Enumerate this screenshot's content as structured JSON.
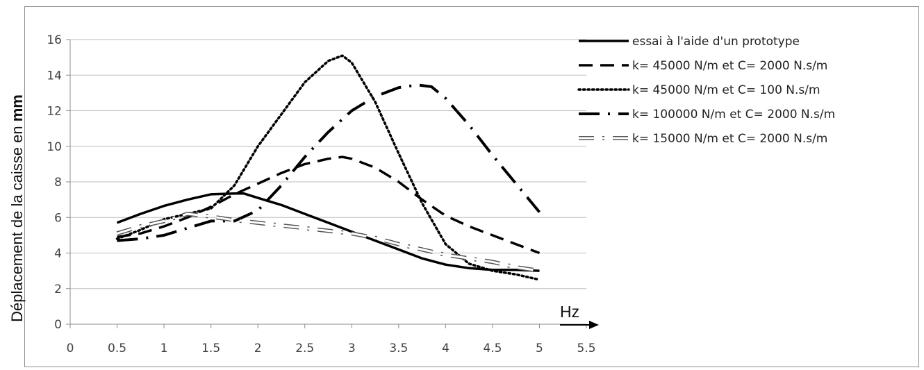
{
  "chart_data": {
    "type": "line",
    "ylabel": "Déplacement de la caisse en",
    "ylabel_unit": "mm",
    "xunit": "Hz",
    "xlim": [
      0,
      5.5
    ],
    "ylim": [
      0,
      16
    ],
    "xticks": [
      "0",
      "0.5",
      "1",
      "1.5",
      "2",
      "2.5",
      "3",
      "3.5",
      "4",
      "4.5",
      "5",
      "5.5"
    ],
    "yticks": [
      "0",
      "2",
      "4",
      "6",
      "8",
      "10",
      "12",
      "14",
      "16"
    ],
    "grid": "horizontal",
    "legend_position": "right",
    "series": [
      {
        "name": "essai à l'aide d'un prototype",
        "style": "solid",
        "color": "#000000",
        "x": [
          0.5,
          0.75,
          1.0,
          1.25,
          1.5,
          1.75,
          1.85,
          2.0,
          2.25,
          2.5,
          2.75,
          3.0,
          3.25,
          3.5,
          3.75,
          4.0,
          4.25,
          4.5,
          4.75,
          5.0
        ],
        "y": [
          5.7,
          6.2,
          6.65,
          7.0,
          7.3,
          7.35,
          7.35,
          7.1,
          6.7,
          6.2,
          5.7,
          5.2,
          4.7,
          4.2,
          3.7,
          3.35,
          3.15,
          3.05,
          3.05,
          3.0
        ]
      },
      {
        "name": "k= 45000 N/m et C= 2000 N.s/m",
        "style": "dashed",
        "color": "#000000",
        "x": [
          0.5,
          0.75,
          1.0,
          1.25,
          1.5,
          1.75,
          2.0,
          2.25,
          2.5,
          2.75,
          2.9,
          3.0,
          3.25,
          3.5,
          3.75,
          4.0,
          4.25,
          4.5,
          4.75,
          5.0
        ],
        "y": [
          4.9,
          5.1,
          5.5,
          6.0,
          6.6,
          7.3,
          7.9,
          8.5,
          9.0,
          9.3,
          9.4,
          9.3,
          8.8,
          8.0,
          7.0,
          6.1,
          5.5,
          5.0,
          4.5,
          4.0
        ]
      },
      {
        "name": "k= 45000 N/m et C= 100 N.s/m",
        "style": "dotted",
        "color": "#000000",
        "x": [
          0.5,
          0.75,
          1.0,
          1.25,
          1.5,
          1.75,
          2.0,
          2.25,
          2.5,
          2.75,
          2.9,
          3.0,
          3.25,
          3.5,
          3.75,
          4.0,
          4.25,
          4.5,
          4.75,
          5.0
        ],
        "y": [
          4.8,
          5.3,
          5.9,
          6.2,
          6.5,
          7.8,
          10.0,
          11.8,
          13.6,
          14.8,
          15.1,
          14.7,
          12.5,
          9.6,
          6.8,
          4.5,
          3.4,
          3.0,
          2.8,
          2.5
        ]
      },
      {
        "name": "k= 100000 N/m et C= 2000 N.s/m",
        "style": "dash-dot",
        "color": "#000000",
        "x": [
          0.5,
          0.75,
          1.0,
          1.25,
          1.5,
          1.75,
          2.0,
          2.25,
          2.5,
          2.75,
          3.0,
          3.25,
          3.5,
          3.7,
          3.85,
          4.0,
          4.25,
          4.5,
          4.75,
          5.0
        ],
        "y": [
          4.7,
          4.8,
          5.0,
          5.4,
          5.8,
          5.8,
          6.4,
          7.8,
          9.4,
          10.8,
          12.0,
          12.8,
          13.3,
          13.45,
          13.35,
          12.7,
          11.2,
          9.5,
          7.9,
          6.3
        ]
      },
      {
        "name": "k= 15000 N/m et C= 2000 N.s/m",
        "style": "hollow-dash-dot",
        "color": "#000000",
        "x": [
          0.5,
          0.75,
          1.0,
          1.25,
          1.5,
          1.75,
          2.0,
          2.25,
          2.5,
          2.75,
          3.0,
          3.25,
          3.5,
          3.75,
          4.0,
          4.25,
          4.5,
          4.75,
          5.0
        ],
        "y": [
          5.1,
          5.5,
          5.8,
          6.2,
          6.05,
          5.85,
          5.7,
          5.55,
          5.4,
          5.25,
          5.1,
          4.85,
          4.5,
          4.2,
          3.9,
          3.7,
          3.5,
          3.2,
          3.0
        ]
      }
    ]
  }
}
